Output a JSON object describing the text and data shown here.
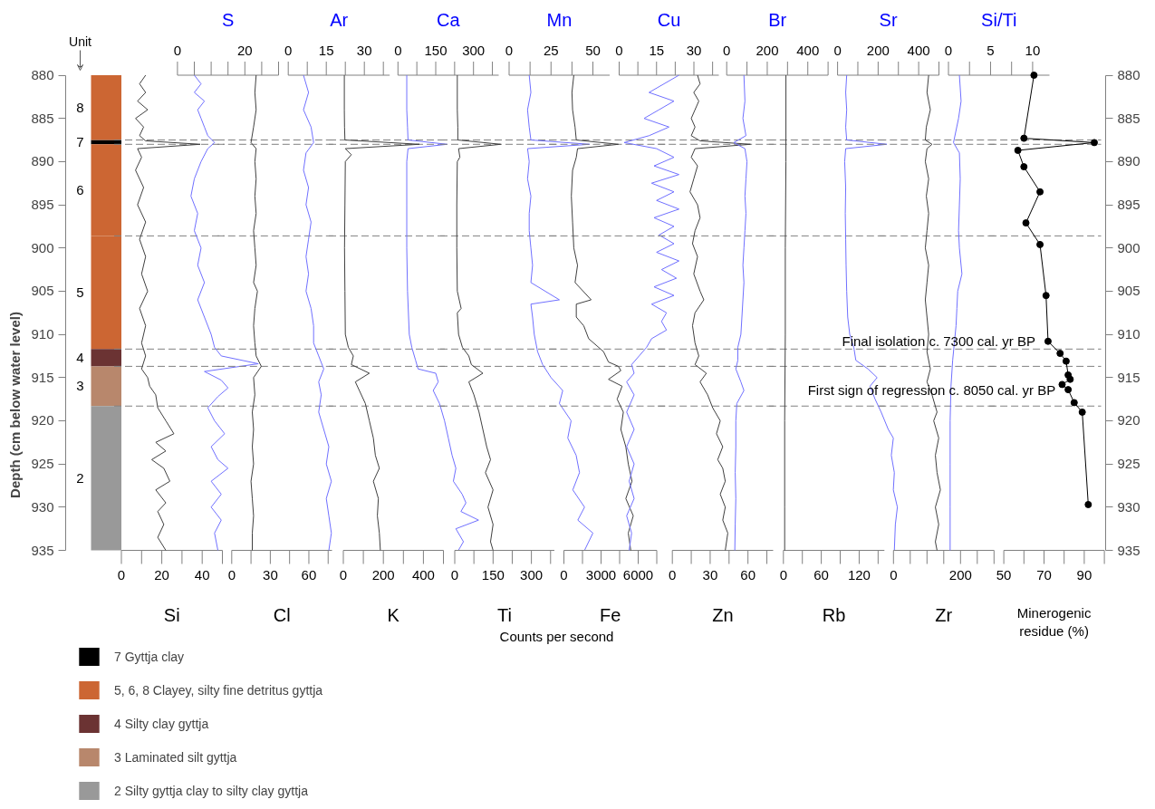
{
  "chart_data": [
    {
      "type": "bar",
      "categories": [
        null
      ],
      "ylabel": "Depth (cm below water level)",
      "ylim": [
        935,
        880
      ],
      "yticks": [
        880,
        885,
        890,
        895,
        900,
        905,
        910,
        915,
        920,
        925,
        930,
        935
      ],
      "tick_labels": "y",
      "legend": "bottom",
      "annotations": [
        "Unit",
        "8",
        "7",
        "6",
        "5",
        "4",
        "3",
        "2"
      ],
      "series": [
        {
          "name": "7 Gyttja clay",
          "color": "#000000",
          "base": [
            887.5
          ],
          "values": [
            0.5
          ]
        },
        {
          "name": "5, 6, 8 Clayey, silty fine detritus gyttja",
          "color": "#cc6633",
          "base": [
            880
          ],
          "values": [
            7.5
          ]
        },
        {
          "color": "#cc6633",
          "base": [
            888
          ],
          "values": [
            10.6
          ]
        },
        {
          "color": "#cc6633",
          "base": [
            898.6
          ],
          "values": [
            13.1
          ]
        },
        {
          "name": "4 Silty clay gyttja",
          "color": "#6b3333",
          "base": [
            911.7
          ],
          "values": [
            2
          ]
        },
        {
          "name": "3 Laminated silt gyttja",
          "color": "#b8876c",
          "base": [
            913.7
          ],
          "values": [
            4.6
          ]
        },
        {
          "name": "2 Silty gyttja clay to silty clay gyttja",
          "color": "#999999",
          "base": [
            918.3
          ],
          "values": [
            16.7
          ]
        }
      ]
    },
    {
      "type": "line",
      "xlabel": "Si",
      "x2label": "S",
      "xlim": [
        0,
        50
      ],
      "xticks": [
        0,
        {
          "value": 10,
          "label": null
        },
        20,
        {
          "value": 30,
          "label": null
        },
        40,
        {
          "value": 50,
          "label": null
        }
      ],
      "x2lim": [
        0,
        30
      ],
      "x2ticks": [
        0,
        {
          "value": 5,
          "label": null
        },
        {
          "value": 10,
          "label": null
        },
        {
          "value": 15,
          "label": null
        },
        20,
        {
          "value": 25,
          "label": null
        },
        {
          "value": 30,
          "label": null
        }
      ],
      "ylim": [
        935,
        880
      ],
      "tick_labels": "x",
      "ref_lines": [
        {
          "axis": "y",
          "value": 887.5,
          "line_style": "dashed",
          "color": "#808080"
        },
        {
          "axis": "y",
          "value": 888,
          "line_style": "dashed",
          "color": "#808080"
        },
        {
          "axis": "y",
          "value": 898.6,
          "line_style": "dashed",
          "color": "#808080"
        },
        {
          "axis": "y",
          "value": 911.7,
          "line_style": "dashed",
          "color": "#808080"
        },
        {
          "axis": "y",
          "value": 913.7,
          "line_style": "dashed",
          "color": "#808080"
        },
        {
          "axis": "y",
          "value": 918.3,
          "line_style": "dashed",
          "color": "#808080"
        }
      ],
      "series": [
        {
          "color": "#404040",
          "x": [
            12,
            9,
            12,
            8,
            13,
            7,
            11,
            9,
            12,
            39,
            8,
            10,
            7,
            11,
            8,
            12,
            9,
            12,
            10,
            13,
            9,
            12,
            10,
            12,
            10,
            13,
            14,
            17,
            18,
            22,
            26,
            17,
            22,
            15,
            21,
            24,
            17,
            22,
            18,
            21,
            18,
            22
          ],
          "values": [
            880,
            881,
            882,
            883,
            884,
            885,
            886,
            887,
            887.6,
            888,
            888.5,
            889.5,
            891,
            893,
            895,
            897,
            899,
            901,
            903,
            905,
            907,
            909,
            911,
            912.5,
            914,
            915,
            916,
            917,
            918.5,
            920,
            921.5,
            922.5,
            923.5,
            924.5,
            925.5,
            927,
            928,
            929.5,
            930.5,
            932,
            933.5,
            935
          ]
        },
        {
          "axis": "x2",
          "color": "#7070ff",
          "x": [
            5,
            7,
            5,
            8,
            6,
            7,
            8,
            9,
            11,
            9,
            7,
            5,
            4,
            6,
            5,
            7,
            6,
            8,
            6,
            8,
            10,
            11,
            13,
            24,
            8,
            13,
            15,
            12,
            9,
            11,
            14,
            10,
            12,
            15,
            10,
            13,
            10,
            13,
            11,
            12
          ],
          "values": [
            880,
            881,
            882,
            883,
            884,
            885,
            886,
            887,
            887.8,
            888.5,
            890,
            892,
            894,
            896,
            898,
            900,
            902,
            904,
            906,
            908,
            910,
            911.5,
            912.5,
            913.4,
            914.3,
            915.3,
            916.2,
            917.2,
            918.5,
            920,
            921.5,
            923,
            924.5,
            925.5,
            927,
            928.5,
            930,
            931.5,
            933,
            935
          ]
        }
      ]
    },
    {
      "type": "line",
      "xlabel": "Cl",
      "x2label": "Ar",
      "xlim": [
        0,
        78
      ],
      "xticks": [
        0,
        {
          "value": 15,
          "label": null
        },
        30,
        {
          "value": 45,
          "label": null
        },
        60,
        {
          "value": 75,
          "label": null
        }
      ],
      "x2lim": [
        0,
        40
      ],
      "x2ticks": [
        0,
        {
          "value": 7.5,
          "label": null
        },
        15,
        {
          "value": 22.5,
          "label": null
        },
        30,
        {
          "value": 37.5,
          "label": null
        }
      ],
      "ylim": [
        935,
        880
      ],
      "tick_labels": "x",
      "ref_lines": [
        {
          "axis": "y",
          "value": 887.5,
          "line_style": "dashed",
          "color": "#808080"
        },
        {
          "axis": "y",
          "value": 888,
          "line_style": "dashed",
          "color": "#808080"
        },
        {
          "axis": "y",
          "value": 898.6,
          "line_style": "dashed",
          "color": "#808080"
        },
        {
          "axis": "y",
          "value": 911.7,
          "line_style": "dashed",
          "color": "#808080"
        },
        {
          "axis": "y",
          "value": 913.7,
          "line_style": "dashed",
          "color": "#808080"
        },
        {
          "axis": "y",
          "value": 918.3,
          "line_style": "dashed",
          "color": "#808080"
        }
      ],
      "series": [
        {
          "color": "#404040",
          "x": [
            19,
            18,
            19,
            17,
            15,
            19,
            18,
            19,
            18,
            19,
            17,
            18,
            19,
            17,
            20,
            18,
            17,
            18,
            19,
            23,
            17,
            18,
            16,
            17,
            16,
            17,
            15,
            16,
            17,
            16,
            16
          ],
          "values": [
            880,
            882,
            884,
            886,
            887.8,
            888.5,
            890,
            892,
            894,
            896,
            898,
            900,
            902,
            904,
            905,
            907,
            909,
            911,
            912.5,
            913.7,
            915,
            917,
            919,
            921,
            923,
            925,
            927,
            929,
            931,
            933,
            935
          ]
        },
        {
          "axis": "x2",
          "color": "#7070ff",
          "x": [
            6,
            8,
            6,
            9,
            10,
            7,
            6,
            8,
            7,
            9,
            8,
            7,
            8,
            7,
            9,
            10,
            10,
            12,
            14,
            12,
            13,
            12,
            14,
            16,
            15,
            17,
            15,
            16,
            17,
            16
          ],
          "values": [
            880,
            882,
            884,
            886,
            887.8,
            889,
            891,
            893,
            895,
            897,
            899,
            901,
            903,
            905,
            907,
            909,
            911,
            912.5,
            914,
            915.5,
            917,
            919,
            921,
            923,
            925,
            927,
            929,
            931,
            933,
            935
          ]
        }
      ]
    },
    {
      "type": "line",
      "xlabel": "K",
      "x2label": "Ca",
      "xlim": [
        0,
        500
      ],
      "xticks": [
        0,
        {
          "value": 100,
          "label": null
        },
        200,
        {
          "value": 300,
          "label": null
        },
        400,
        {
          "value": 500,
          "label": null
        }
      ],
      "x2lim": [
        0,
        400
      ],
      "x2ticks": [
        0,
        {
          "value": 75,
          "label": null
        },
        150,
        {
          "value": 225,
          "label": null
        },
        300,
        {
          "value": 375,
          "label": null
        }
      ],
      "ylim": [
        935,
        880
      ],
      "tick_labels": "x",
      "ref_lines": [
        {
          "axis": "y",
          "value": 887.5,
          "line_style": "dashed",
          "color": "#808080"
        },
        {
          "axis": "y",
          "value": 888,
          "line_style": "dashed",
          "color": "#808080"
        },
        {
          "axis": "y",
          "value": 898.6,
          "line_style": "dashed",
          "color": "#808080"
        },
        {
          "axis": "y",
          "value": 911.7,
          "line_style": "dashed",
          "color": "#808080"
        },
        {
          "axis": "y",
          "value": 913.7,
          "line_style": "dashed",
          "color": "#808080"
        },
        {
          "axis": "y",
          "value": 918.3,
          "line_style": "dashed",
          "color": "#808080"
        }
      ],
      "series": [
        {
          "color": "#404040",
          "x": [
            5,
            5,
            6,
            8,
            380,
            10,
            40,
            10,
            8,
            6,
            8,
            10,
            25,
            50,
            40,
            130,
            60,
            80,
            110,
            130,
            150,
            160,
            180,
            150,
            175,
            170,
            180,
            185
          ],
          "values": [
            880,
            884,
            886,
            887.5,
            888,
            888.5,
            889.2,
            890,
            895,
            900,
            905,
            910,
            911.5,
            912.5,
            913.5,
            914.5,
            915.5,
            916.5,
            918,
            920,
            922,
            924,
            925.5,
            927,
            929,
            931,
            933,
            935
          ]
        },
        {
          "axis": "x2",
          "color": "#7070ff",
          "x": [
            35,
            35,
            38,
            40,
            195,
            40,
            35,
            35,
            35,
            38,
            45,
            55,
            70,
            80,
            150,
            160,
            140,
            165,
            185,
            200,
            215,
            230,
            220,
            255,
            270,
            250,
            320,
            230,
            260,
            240
          ],
          "values": [
            880,
            884,
            886,
            887.5,
            888,
            888.5,
            890,
            895,
            900,
            905,
            910,
            911.5,
            913,
            914,
            914.5,
            915.5,
            916.5,
            918,
            920,
            922,
            924,
            925.5,
            927,
            928.5,
            929.5,
            930.5,
            931.5,
            932.5,
            934,
            935
          ]
        }
      ]
    },
    {
      "type": "line",
      "xlabel": "Ti",
      "x2label": "Mn",
      "xlim": [
        0,
        390
      ],
      "xticks": [
        0,
        {
          "value": 75,
          "label": null
        },
        150,
        {
          "value": 225,
          "label": null
        },
        300,
        {
          "value": 375,
          "label": null
        }
      ],
      "x2lim": [
        0,
        60
      ],
      "x2ticks": [
        0,
        {
          "value": 12.5,
          "label": null
        },
        25,
        {
          "value": 37.5,
          "label": null
        },
        50
      ],
      "ylim": [
        935,
        880
      ],
      "tick_labels": "x",
      "ref_lines": [
        {
          "axis": "y",
          "value": 887.5,
          "line_style": "dashed",
          "color": "#808080"
        },
        {
          "axis": "y",
          "value": 888,
          "line_style": "dashed",
          "color": "#808080"
        },
        {
          "axis": "y",
          "value": 898.6,
          "line_style": "dashed",
          "color": "#808080"
        },
        {
          "axis": "y",
          "value": 911.7,
          "line_style": "dashed",
          "color": "#808080"
        },
        {
          "axis": "y",
          "value": 913.7,
          "line_style": "dashed",
          "color": "#808080"
        },
        {
          "axis": "y",
          "value": 918.3,
          "line_style": "dashed",
          "color": "#808080"
        }
      ],
      "series": [
        {
          "color": "#404040",
          "x": [
            10,
            10,
            12,
            12,
            180,
            15,
            20,
            10,
            8,
            8,
            10,
            25,
            10,
            15,
            30,
            55,
            65,
            110,
            55,
            75,
            95,
            110,
            125,
            140,
            120,
            150,
            130,
            150,
            140,
            150
          ],
          "values": [
            880,
            884,
            886,
            887.5,
            888,
            888.5,
            889.5,
            890,
            895,
            900,
            905,
            907,
            907.5,
            910,
            911.5,
            912.5,
            913.5,
            914.5,
            915.5,
            917,
            919,
            921,
            923,
            924.5,
            926,
            928,
            930,
            932,
            934,
            935
          ]
        },
        {
          "axis": "x2",
          "color": "#7070ff",
          "x": [
            12,
            13,
            11,
            12,
            13,
            48,
            11,
            12,
            11,
            13,
            12,
            12,
            13,
            14,
            13,
            30,
            13,
            14,
            15,
            17,
            20,
            25,
            32,
            30,
            37,
            35,
            40,
            42,
            38,
            45,
            41,
            50,
            45
          ],
          "values": [
            880,
            882,
            884,
            886,
            887.5,
            888,
            888.5,
            890,
            892,
            894,
            896,
            898,
            900,
            902,
            904,
            906,
            906.5,
            908,
            910,
            912,
            913.5,
            915,
            916.5,
            918,
            920,
            922,
            924,
            926,
            928,
            930,
            931.5,
            933,
            935
          ]
        }
      ]
    },
    {
      "type": "line",
      "xlabel": "Fe",
      "x2label": "Cu",
      "xlim": [
        0,
        7500
      ],
      "xticks": [
        0,
        {
          "value": 1500,
          "label": null
        },
        3000,
        {
          "value": 4500,
          "label": null
        },
        6000,
        {
          "value": 7500,
          "label": null
        }
      ],
      "x2lim": [
        0,
        40
      ],
      "x2ticks": [
        0,
        {
          "value": 7.5,
          "label": null
        },
        15,
        {
          "value": 22.5,
          "label": null
        },
        30,
        {
          "value": 37.5,
          "label": null
        }
      ],
      "ylim": [
        935,
        880
      ],
      "tick_labels": "x",
      "annotations": [
        "Counts per second"
      ],
      "ref_lines": [
        {
          "axis": "y",
          "value": 887.5,
          "line_style": "dashed",
          "color": "#808080"
        },
        {
          "axis": "y",
          "value": 888,
          "line_style": "dashed",
          "color": "#808080"
        },
        {
          "axis": "y",
          "value": 898.6,
          "line_style": "dashed",
          "color": "#808080"
        },
        {
          "axis": "y",
          "value": 911.7,
          "line_style": "dashed",
          "color": "#808080"
        },
        {
          "axis": "y",
          "value": 913.7,
          "line_style": "dashed",
          "color": "#808080"
        },
        {
          "axis": "y",
          "value": 918.3,
          "line_style": "dashed",
          "color": "#808080"
        }
      ],
      "series": [
        {
          "color": "#404040",
          "x": [
            800,
            650,
            700,
            900,
            1000,
            4400,
            1100,
            1000,
            700,
            600,
            700,
            800,
            1100,
            900,
            2200,
            1000,
            1000,
            1600,
            2000,
            3200,
            3600,
            4400,
            4600,
            3600,
            4700,
            4300,
            4800,
            4600,
            5000,
            5200,
            5500,
            5000,
            5600,
            5200,
            5400
          ],
          "values": [
            880,
            882,
            884,
            886,
            887.5,
            888,
            888.5,
            889.5,
            891,
            894,
            897,
            900,
            902,
            904,
            906,
            906.5,
            908,
            909,
            910.5,
            912,
            913.2,
            913.7,
            914.2,
            915.2,
            916,
            917.5,
            919,
            921,
            923,
            925,
            927,
            929,
            931,
            933,
            935
          ]
        },
        {
          "axis": "x2",
          "color": "#7070ff",
          "x": [
            24,
            18,
            12,
            22,
            16,
            10,
            20,
            12,
            2,
            15,
            22,
            14,
            24,
            13,
            22,
            15,
            24,
            14,
            22,
            16,
            22,
            15,
            24,
            17,
            23,
            14,
            22,
            13,
            19,
            17,
            19,
            13,
            11,
            8,
            5,
            6,
            3,
            6,
            3,
            6,
            3,
            6,
            4,
            6,
            3,
            5,
            4
          ],
          "values": [
            880,
            881,
            882,
            883,
            884,
            885,
            886,
            887,
            887.8,
            888.5,
            889.5,
            890.5,
            891.5,
            892.5,
            893.5,
            894.5,
            895.5,
            896.5,
            897.5,
            898.5,
            899.5,
            900.5,
            901.5,
            902.5,
            903.5,
            904.5,
            905.5,
            906.5,
            907.5,
            908.5,
            909.5,
            910.5,
            911.5,
            912.5,
            913.5,
            914.5,
            915.5,
            917,
            919,
            921,
            923,
            925,
            927,
            929,
            931,
            933,
            935
          ]
        }
      ]
    },
    {
      "type": "line",
      "xlabel": "Zn",
      "x2label": "Br",
      "xlim": [
        0,
        80
      ],
      "xticks": [
        0,
        {
          "value": 15,
          "label": null
        },
        30,
        {
          "value": 45,
          "label": null
        },
        60,
        {
          "value": 75,
          "label": null
        }
      ],
      "x2lim": [
        0,
        500
      ],
      "x2ticks": [
        0,
        {
          "value": 100,
          "label": null
        },
        200,
        {
          "value": 300,
          "label": null
        },
        400,
        {
          "value": 500,
          "label": null
        }
      ],
      "ylim": [
        935,
        880
      ],
      "tick_labels": "x",
      "ref_lines": [
        {
          "axis": "y",
          "value": 887.5,
          "line_style": "dashed",
          "color": "#808080"
        },
        {
          "axis": "y",
          "value": 888,
          "line_style": "dashed",
          "color": "#808080"
        },
        {
          "axis": "y",
          "value": 898.6,
          "line_style": "dashed",
          "color": "#808080"
        },
        {
          "axis": "y",
          "value": 911.7,
          "line_style": "dashed",
          "color": "#808080"
        },
        {
          "axis": "y",
          "value": 913.7,
          "line_style": "dashed",
          "color": "#808080"
        },
        {
          "axis": "y",
          "value": 918.3,
          "line_style": "dashed",
          "color": "#808080"
        }
      ],
      "series": [
        {
          "color": "#404040",
          "x": [
            20,
            22,
            17,
            21,
            18,
            15,
            18,
            15,
            22,
            62,
            18,
            15,
            20,
            17,
            14,
            20,
            22,
            18,
            16,
            20,
            17,
            22,
            25,
            18,
            16,
            18,
            21,
            18,
            27,
            22,
            28,
            32,
            38,
            35,
            40,
            36,
            40,
            42,
            38,
            42,
            40,
            44,
            42
          ],
          "values": [
            880,
            881,
            882,
            883,
            884,
            885,
            886,
            887,
            887.6,
            888,
            888.5,
            889.5,
            890.5,
            892,
            893.5,
            895,
            896.5,
            898,
            899.5,
            901,
            903,
            905,
            906,
            907.5,
            909,
            911,
            912.5,
            913.5,
            914.5,
            915.5,
            917,
            918.5,
            920,
            921.5,
            923,
            924.5,
            925.5,
            927,
            928.5,
            930,
            931.5,
            933,
            935
          ]
        },
        {
          "axis": "x2",
          "color": "#7070ff",
          "x": [
            85,
            90,
            80,
            95,
            35,
            90,
            100,
            95,
            90,
            95,
            90,
            85,
            80,
            85,
            80,
            75,
            70,
            55,
            55,
            45,
            70,
            85,
            50,
            45,
            45,
            42,
            45,
            42,
            40
          ],
          "values": [
            880,
            883,
            885,
            887,
            887.8,
            888.5,
            890,
            892,
            894,
            896,
            898,
            900,
            902,
            904,
            906,
            908,
            910,
            911.5,
            913,
            914,
            915.5,
            916.5,
            918,
            920,
            923,
            926,
            929,
            932,
            935
          ]
        }
      ]
    },
    {
      "type": "line",
      "xlabel": "Rb",
      "x2label": "Sr",
      "xlim": [
        0,
        160
      ],
      "xticks": [
        0,
        {
          "value": 30,
          "label": null
        },
        60,
        {
          "value": 90,
          "label": null
        },
        120,
        {
          "value": 150,
          "label": null
        }
      ],
      "x2lim": [
        0,
        500
      ],
      "x2ticks": [
        0,
        {
          "value": 100,
          "label": null
        },
        200,
        {
          "value": 300,
          "label": null
        },
        400,
        {
          "value": 500,
          "label": null
        }
      ],
      "ylim": [
        935,
        880
      ],
      "tick_labels": "x",
      "ref_lines": [
        {
          "axis": "y",
          "value": 887.5,
          "line_style": "dashed",
          "color": "#808080"
        },
        {
          "axis": "y",
          "value": 888,
          "line_style": "dashed",
          "color": "#808080"
        },
        {
          "axis": "y",
          "value": 898.6,
          "line_style": "dashed",
          "color": "#808080"
        },
        {
          "axis": "y",
          "value": 911.7,
          "line_style": "dashed",
          "color": "#808080"
        },
        {
          "axis": "y",
          "value": 913.7,
          "line_style": "dashed",
          "color": "#808080"
        },
        {
          "axis": "y",
          "value": 918.3,
          "line_style": "dashed",
          "color": "#808080"
        }
      ],
      "series": [
        {
          "color": "#404040",
          "x": [
            4,
            4,
            3,
            3,
            2,
            2,
            2
          ],
          "values": [
            880,
            890,
            900,
            910,
            920,
            930,
            935
          ]
        },
        {
          "axis": "x2",
          "color": "#7070ff",
          "x": [
            45,
            40,
            45,
            40,
            45,
            243,
            40,
            35,
            40,
            38,
            40,
            42,
            45,
            50,
            60,
            80,
            90,
            150,
            195,
            160,
            185,
            215,
            250,
            275,
            265,
            280,
            275,
            295,
            285,
            280
          ],
          "values": [
            880,
            882,
            884,
            886,
            887.5,
            888,
            888.5,
            890,
            893,
            896,
            899,
            902,
            905,
            908,
            910,
            911.5,
            913,
            914,
            915,
            916,
            917.5,
            919,
            921,
            922,
            924,
            926,
            928,
            930,
            932,
            935
          ]
        }
      ]
    },
    {
      "type": "line",
      "xlabel": "Zr",
      "x2label": "Si/Ti",
      "xlim": [
        0,
        300
      ],
      "xticks": [
        0,
        {
          "value": 50,
          "label": null
        },
        {
          "value": 100,
          "label": null
        },
        {
          "value": 150,
          "label": null
        },
        200,
        {
          "value": 250,
          "label": null
        },
        {
          "value": 300,
          "label": null
        }
      ],
      "x2lim": [
        0,
        12
      ],
      "x2ticks": [
        0,
        {
          "value": 2.5,
          "label": null
        },
        5,
        {
          "value": 7.5,
          "label": null
        },
        10
      ],
      "ylim": [
        935,
        880
      ],
      "tick_labels": "x",
      "ref_lines": [
        {
          "axis": "y",
          "value": 887.5,
          "line_style": "dashed",
          "color": "#808080"
        },
        {
          "axis": "y",
          "value": 888,
          "line_style": "dashed",
          "color": "#808080"
        },
        {
          "axis": "y",
          "value": 898.6,
          "line_style": "dashed",
          "color": "#808080"
        },
        {
          "axis": "y",
          "value": 911.7,
          "line_style": "dashed",
          "color": "#808080"
        },
        {
          "axis": "y",
          "value": 913.7,
          "line_style": "dashed",
          "color": "#808080"
        },
        {
          "axis": "y",
          "value": 918.3,
          "line_style": "dashed",
          "color": "#808080"
        }
      ],
      "series": [
        {
          "color": "#404040",
          "x": [
            105,
            100,
            110,
            98,
            95,
            115,
            100,
            95,
            105,
            98,
            105,
            100,
            95,
            105,
            100,
            95,
            100,
            105,
            100,
            110,
            100,
            115,
            130,
            120,
            135,
            125,
            130,
            140,
            125,
            135,
            125,
            130
          ],
          "values": [
            880,
            882,
            884,
            886,
            887.5,
            888,
            888.5,
            890,
            892,
            894,
            896,
            898,
            900,
            902,
            904,
            906,
            908,
            910,
            912,
            914,
            915.5,
            917,
            919,
            920,
            922,
            924,
            926,
            928,
            930,
            932,
            934,
            935
          ]
        },
        {
          "axis": "x2",
          "color": "#7070ff",
          "x": [
            1.3,
            1.5,
            1.2,
            0.6,
            1.3,
            1.4,
            1.3,
            1.2,
            1.3,
            1.6,
            1.1,
            1.0,
            0.9,
            0.7,
            0.5,
            0.3,
            0.2,
            0.2,
            0.2,
            0.2
          ],
          "values": [
            880,
            883,
            885,
            887.8,
            889,
            892,
            895,
            898,
            900,
            903,
            905,
            907,
            909,
            911,
            913,
            916,
            920,
            925,
            930,
            935
          ]
        }
      ]
    },
    {
      "type": "line",
      "xlabel": "Minerogenic residue (%)",
      "xlim": [
        50,
        100
      ],
      "xticks": [
        50,
        {
          "value": 60,
          "label": null
        },
        70,
        {
          "value": 80,
          "label": null
        },
        90,
        {
          "value": 100,
          "label": null
        }
      ],
      "ylim": [
        935,
        880
      ],
      "yticks": [
        880,
        885,
        890,
        895,
        900,
        905,
        910,
        915,
        920,
        925,
        930,
        935
      ],
      "marker": "circle",
      "annotations": [
        {
          "text": "Final isolation c. 7300 cal. yr BP",
          "x": 72,
          "y": 910.8
        },
        {
          "text": "First sign of regression c. 8050 cal. yr BP",
          "x": 82,
          "y": 916.4
        }
      ],
      "ref_lines": [
        {
          "axis": "y",
          "value": 887.5,
          "line_style": "dashed",
          "color": "#808080"
        },
        {
          "axis": "y",
          "value": 888,
          "line_style": "dashed",
          "color": "#808080"
        },
        {
          "axis": "y",
          "value": 898.6,
          "line_style": "dashed",
          "color": "#808080"
        },
        {
          "axis": "y",
          "value": 911.7,
          "line_style": "dashed",
          "color": "#808080"
        },
        {
          "axis": "y",
          "value": 913.7,
          "line_style": "dashed",
          "color": "#808080"
        },
        {
          "axis": "y",
          "value": 918.3,
          "line_style": "dashed",
          "color": "#808080"
        }
      ],
      "series": [
        {
          "color": "#000000",
          "x": [
            65,
            60,
            95,
            57,
            60,
            68,
            61,
            68,
            71,
            72,
            78,
            81,
            82,
            83,
            79,
            82,
            85,
            89,
            92
          ],
          "values": [
            880,
            887.3,
            887.8,
            888.7,
            890.6,
            893.5,
            897.1,
            899.6,
            905.5,
            910.8,
            912.2,
            913.1,
            914.7,
            915.2,
            915.8,
            916.4,
            917.9,
            919,
            929.7
          ]
        }
      ]
    }
  ]
}
